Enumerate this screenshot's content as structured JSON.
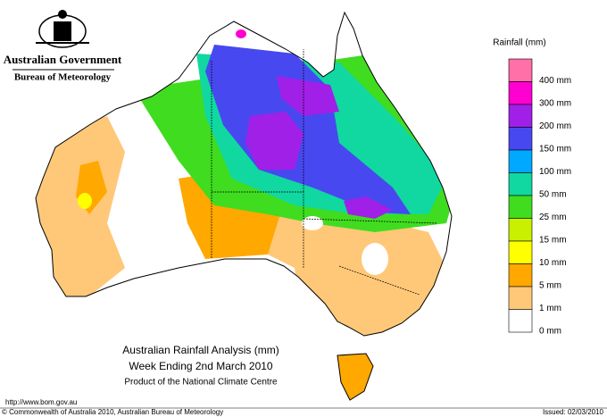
{
  "header": {
    "government": "Australian Government",
    "bureau": "Bureau of Meteorology"
  },
  "legend": {
    "title": "Rainfall (mm)",
    "top_color": "#ff6fa8",
    "items": [
      {
        "label": "400 mm",
        "color": "#ff00d0"
      },
      {
        "label": "300 mm",
        "color": "#a020e8"
      },
      {
        "label": "200 mm",
        "color": "#4848f0"
      },
      {
        "label": "150 mm",
        "color": "#00a8ff"
      },
      {
        "label": "100 mm",
        "color": "#10d8a0"
      },
      {
        "label": "50 mm",
        "color": "#40dc20"
      },
      {
        "label": "25 mm",
        "color": "#c8f000"
      },
      {
        "label": "15 mm",
        "color": "#ffff00"
      },
      {
        "label": "10 mm",
        "color": "#ffa800"
      },
      {
        "label": "5 mm",
        "color": "#ffc878"
      },
      {
        "label": "1 mm",
        "color": "#ffffff"
      },
      {
        "label": "0 mm",
        "color": null
      }
    ]
  },
  "map_title": {
    "line1": "Australian Rainfall Analysis (mm)",
    "line2": "Week Ending 2nd March 2010",
    "line3": "Product of the National Climate Centre"
  },
  "footer": {
    "url": "http://www.bom.gov.au",
    "copyright": "© Commonwealth of Australia 2010, Australian Bureau of Meteorology",
    "issued": "Issued: 02/03/2010"
  }
}
